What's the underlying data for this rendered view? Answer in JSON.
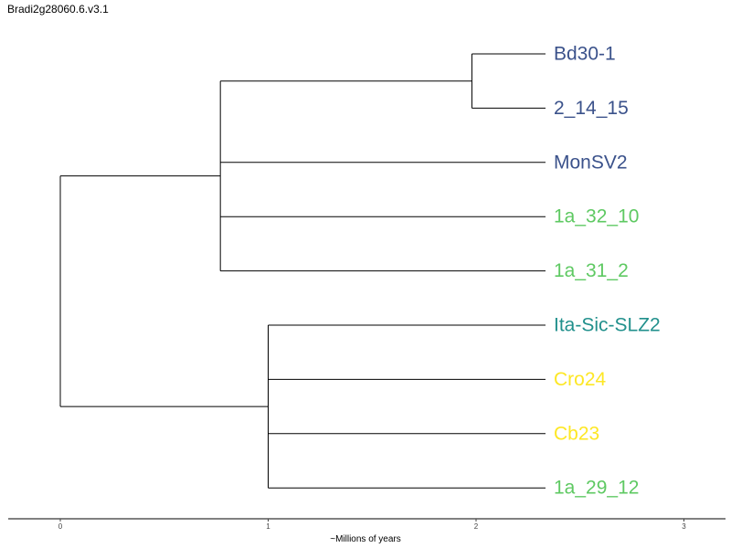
{
  "tree": {
    "title": "Bradi2g28060.6.v3.1",
    "axis": {
      "label": "~Millions of years",
      "range": [
        0,
        3
      ],
      "ticks": [
        "0",
        "1",
        "2",
        "3"
      ]
    },
    "colors": {
      "dark_blue": "#3b528b",
      "teal": "#21908c",
      "green": "#5ec962",
      "yellow": "#fde725",
      "branch": "#000000"
    },
    "internal_nodes": [
      {
        "id": "root",
        "time": 0.0,
        "children": [
          "n_A",
          "n_B"
        ]
      },
      {
        "id": "n_A",
        "time": 0.77,
        "children": [
          "n_C",
          "MonSV2",
          "1a_32_10",
          "1a_31_2"
        ]
      },
      {
        "id": "n_C",
        "time": 1.98,
        "children": [
          "Bd30-1",
          "2_14_15"
        ]
      },
      {
        "id": "n_B",
        "time": 1.0,
        "children": [
          "Ita-Sic-SLZ2",
          "Cro24",
          "Cb23",
          "1a_29_12"
        ]
      }
    ],
    "tips": [
      {
        "id": "Bd30-1",
        "label": "Bd30-1",
        "color": "#3b528b"
      },
      {
        "id": "2_14_15",
        "label": "2_14_15",
        "color": "#3b528b"
      },
      {
        "id": "MonSV2",
        "label": "MonSV2",
        "color": "#3b528b"
      },
      {
        "id": "1a_32_10",
        "label": "1a_32_10",
        "color": "#5ec962"
      },
      {
        "id": "1a_31_2",
        "label": "1a_31_2",
        "color": "#5ec962"
      },
      {
        "id": "Ita-Sic-SLZ2",
        "label": "Ita-Sic-SLZ2",
        "color": "#21908c"
      },
      {
        "id": "Cro24",
        "label": "Cro24",
        "color": "#fde725"
      },
      {
        "id": "Cb23",
        "label": "Cb23",
        "color": "#fde725"
      },
      {
        "id": "1a_29_12",
        "label": "1a_29_12",
        "color": "#5ec962"
      }
    ]
  }
}
